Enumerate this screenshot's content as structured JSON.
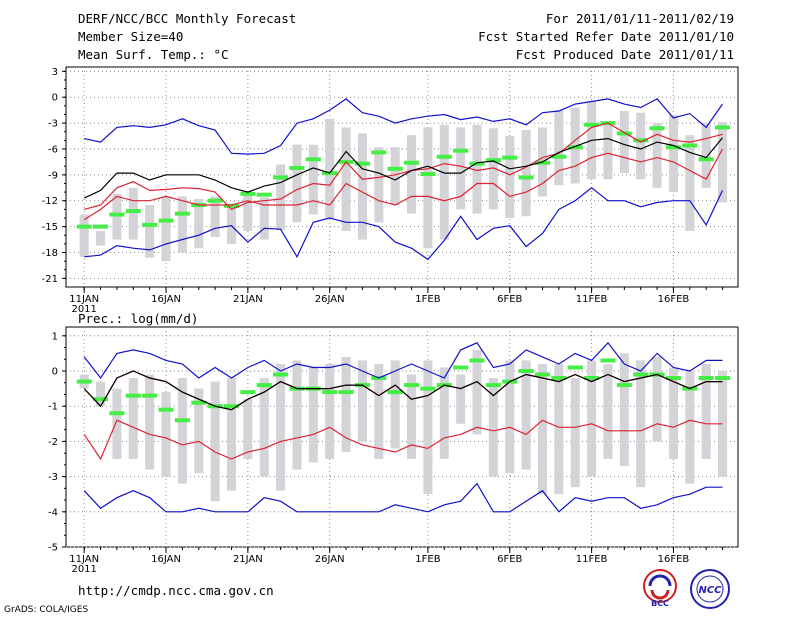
{
  "header": {
    "title": "DERF/NCC/BCC Monthly Forecast",
    "member_size": "Member Size=40",
    "variable": "Mean Surf. Temp.: °C",
    "period": "For 2011/01/11-2011/02/19",
    "refer_date": "Fcst Started Refer Date 2011/01/10",
    "produced_date": "Fcst Produced Date 2011/01/11"
  },
  "footer": {
    "url": "http://cmdp.ncc.cma.gov.cn",
    "grads": "GrADS: COLA/IGES",
    "logo_bcc": "BCC",
    "logo_ncc": "NCC"
  },
  "colors": {
    "box": "#d3d3d8",
    "median": "#44ee44",
    "mean": "#000000",
    "spread": "#dd2233",
    "extreme": "#1111cc",
    "grid": "#888888"
  },
  "chart_data": [
    {
      "id": "temp",
      "type": "box",
      "title": "Mean Surf. Temp.: °C",
      "ylim": [
        -22,
        3.5
      ],
      "yticks": [
        3,
        0,
        -3,
        -6,
        -9,
        -12,
        -15,
        -18,
        -21
      ],
      "xticks": [
        {
          "day": 1,
          "label": "11JAN",
          "sub": "2011"
        },
        {
          "day": 6,
          "label": "16JAN"
        },
        {
          "day": 11,
          "label": "21JAN"
        },
        {
          "day": 16,
          "label": "26JAN"
        },
        {
          "day": 22,
          "label": "1FEB"
        },
        {
          "day": 27,
          "label": "6FEB"
        },
        {
          "day": 32,
          "label": "11FEB"
        },
        {
          "day": 37,
          "label": "16FEB"
        }
      ],
      "days": 40,
      "max": [
        -4.8,
        -5.2,
        -3.5,
        -3.3,
        -3.5,
        -3.2,
        -2.5,
        -3.3,
        -3.8,
        -6.5,
        -6.6,
        -6.5,
        -5.6,
        -3.0,
        -2.5,
        -1.5,
        -0.2,
        -1.8,
        -2.2,
        -3.0,
        -2.5,
        -2.2,
        -2.0,
        -2.6,
        -2.3,
        -2.8,
        -2.5,
        -3.2,
        -1.8,
        -1.6,
        -0.8,
        -0.5,
        -0.2,
        -0.8,
        -1.2,
        -0.2,
        -2.4,
        -1.9,
        -3.5,
        -0.8
      ],
      "p75": [
        -13.0,
        -12.5,
        -10.5,
        -9.8,
        -10.8,
        -10.7,
        -10.5,
        -10.6,
        -11.0,
        -13.0,
        -12.2,
        -12.0,
        -11.8,
        -10.7,
        -10.0,
        -10.2,
        -7.5,
        -9.5,
        -9.3,
        -9.0,
        -8.5,
        -8.3,
        -7.7,
        -8.0,
        -8.5,
        -8.2,
        -9.0,
        -8.1,
        -7.0,
        -6.5,
        -5.0,
        -3.5,
        -3.0,
        -4.1,
        -5.2,
        -4.3,
        -5.0,
        -5.2,
        -4.8,
        -4.3
      ],
      "box_hi": [
        -13.6,
        -15.5,
        -11.2,
        -10.5,
        -12.5,
        -11.5,
        -11.5,
        -11.8,
        -11.5,
        -12.8,
        -11.2,
        -11.6,
        -7.8,
        -5.5,
        -5.5,
        -2.5,
        -3.5,
        -4.2,
        -5.8,
        -5.8,
        -4.4,
        -3.5,
        -3.2,
        -3.5,
        -3.2,
        -3.6,
        -4.5,
        -3.8,
        -3.5,
        -1.5,
        -1.2,
        -0.5,
        -3.2,
        -1.6,
        -1.8,
        -3.0,
        -2.1,
        -4.4,
        -3.0,
        -2.9
      ],
      "box_lo": [
        -18.5,
        -17.2,
        -16.5,
        -16.5,
        -18.6,
        -19.0,
        -18.0,
        -17.5,
        -16.2,
        -17.0,
        -15.5,
        -16.5,
        -15.4,
        -14.5,
        -13.6,
        -14.0,
        -15.5,
        -16.5,
        -14.5,
        -12.5,
        -13.5,
        -17.5,
        -16.5,
        -13.0,
        -13.5,
        -13.0,
        -14.0,
        -13.8,
        -11.5,
        -10.2,
        -10.0,
        -9.5,
        -9.5,
        -8.8,
        -9.5,
        -10.5,
        -11.0,
        -15.5,
        -10.5,
        -12.2
      ],
      "median": [
        -15.0,
        -15.0,
        -13.6,
        -13.2,
        -14.8,
        -14.3,
        -13.5,
        -12.5,
        -12.0,
        -12.6,
        -11.2,
        -11.3,
        -9.3,
        -8.2,
        -7.2,
        -8.8,
        -7.5,
        -7.7,
        -6.4,
        -8.3,
        -7.6,
        -8.9,
        -6.9,
        -6.2,
        -7.7,
        -7.3,
        -7.0,
        -9.3,
        -7.6,
        -6.9,
        -5.8,
        -3.2,
        -3.0,
        -4.2,
        -5.0,
        -3.6,
        -5.8,
        -5.6,
        -7.2,
        -3.5
      ],
      "mean": [
        -11.7,
        -10.8,
        -8.8,
        -8.8,
        -9.6,
        -9.0,
        -9.0,
        -9.0,
        -9.6,
        -10.5,
        -11.0,
        -10.3,
        -9.9,
        -9.0,
        -8.2,
        -8.8,
        -6.3,
        -8.3,
        -8.8,
        -9.6,
        -8.5,
        -8.0,
        -8.8,
        -8.8,
        -7.6,
        -7.4,
        -8.3,
        -8.0,
        -7.5,
        -6.4,
        -5.7,
        -5.0,
        -4.8,
        -5.5,
        -6.0,
        -5.2,
        -5.6,
        -6.4,
        -7.0,
        -4.7
      ],
      "p25": [
        -14.2,
        -13.0,
        -11.5,
        -12.0,
        -12.0,
        -11.5,
        -12.0,
        -12.5,
        -12.5,
        -12.5,
        -12.0,
        -12.5,
        -12.5,
        -12.5,
        -12.0,
        -12.5,
        -10.0,
        -11.0,
        -12.0,
        -12.5,
        -11.5,
        -11.5,
        -12.0,
        -11.5,
        -10.0,
        -10.0,
        -11.5,
        -11.0,
        -10.0,
        -8.5,
        -8.0,
        -7.0,
        -6.5,
        -7.0,
        -7.5,
        -7.0,
        -7.5,
        -8.5,
        -9.5,
        -6.0
      ],
      "min": [
        -18.5,
        -18.3,
        -17.2,
        -17.5,
        -17.7,
        -17.0,
        -16.5,
        -16.0,
        -15.2,
        -14.9,
        -16.8,
        -15.2,
        -15.3,
        -18.5,
        -14.5,
        -14.0,
        -14.5,
        -14.5,
        -15.0,
        -16.8,
        -17.5,
        -18.8,
        -16.6,
        -13.8,
        -16.5,
        -15.2,
        -14.9,
        -17.3,
        -15.8,
        -13.0,
        -12.0,
        -10.5,
        -12.0,
        -12.0,
        -12.7,
        -12.2,
        -12.0,
        -12.0,
        -14.8,
        -10.8
      ],
      "extra_mean": [
        -5.8,
        -6.2
      ]
    },
    {
      "id": "prec",
      "type": "box",
      "title": "Prec.: log(mm/d)",
      "ylim": [
        -5,
        1.25
      ],
      "yticks": [
        1,
        0,
        -1,
        -2,
        -3,
        -4,
        -5
      ],
      "xticks": [
        {
          "day": 1,
          "label": "11JAN",
          "sub": "2011"
        },
        {
          "day": 6,
          "label": "16JAN"
        },
        {
          "day": 11,
          "label": "21JAN"
        },
        {
          "day": 16,
          "label": "26JAN"
        },
        {
          "day": 22,
          "label": "1FEB"
        },
        {
          "day": 27,
          "label": "6FEB"
        },
        {
          "day": 32,
          "label": "11FEB"
        },
        {
          "day": 37,
          "label": "16FEB"
        }
      ],
      "days": 40,
      "max": [
        0.4,
        -0.2,
        0.5,
        0.6,
        0.5,
        0.3,
        0.2,
        -0.2,
        0.1,
        -0.2,
        0.1,
        0.3,
        0.0,
        0.2,
        0.1,
        0.1,
        0.2,
        0.0,
        -0.2,
        0.0,
        0.2,
        0.0,
        -0.2,
        0.6,
        0.8,
        0.1,
        0.2,
        0.6,
        0.4,
        0.2,
        0.5,
        0.3,
        0.8,
        0.2,
        0.0,
        0.5,
        0.1,
        0.0,
        0.3,
        0.3
      ],
      "box_hi": [
        -0.1,
        -0.3,
        -0.5,
        -0.2,
        -0.1,
        -0.6,
        -0.2,
        -0.5,
        -0.3,
        -0.2,
        -0.8,
        -0.2,
        0.2,
        0.3,
        0.1,
        0.2,
        0.4,
        0.3,
        0.2,
        0.3,
        -0.1,
        0.3,
        0.1,
        -0.1,
        0.6,
        -0.2,
        0.3,
        0.3,
        0.2,
        0.2,
        -0.2,
        0.3,
        0.2,
        0.5,
        0.3,
        0.4,
        0.1,
        0.0,
        0.2,
        0.0
      ],
      "box_lo": [
        -0.5,
        -1.0,
        -2.5,
        -2.5,
        -2.8,
        -3.0,
        -3.2,
        -2.9,
        -3.7,
        -3.4,
        -2.5,
        -3.0,
        -3.4,
        -2.8,
        -2.6,
        -2.5,
        -2.3,
        -2.0,
        -2.5,
        -2.2,
        -2.5,
        -3.5,
        -2.5,
        -1.5,
        -1.8,
        -3.0,
        -2.9,
        -2.8,
        -3.5,
        -3.5,
        -3.3,
        -3.0,
        -2.5,
        -2.7,
        -3.3,
        -2.0,
        -2.5,
        -3.2,
        -2.5,
        -3.0
      ],
      "median": [
        -0.3,
        -0.8,
        -1.2,
        -0.7,
        -0.7,
        -1.1,
        -1.4,
        -0.9,
        -1.0,
        -1.0,
        -0.6,
        -0.4,
        -0.1,
        -0.5,
        -0.5,
        -0.6,
        -0.6,
        -0.4,
        -0.2,
        -0.6,
        -0.4,
        -0.5,
        -0.4,
        0.1,
        0.3,
        -0.4,
        -0.3,
        0.0,
        -0.1,
        -0.2,
        0.1,
        -0.2,
        0.3,
        -0.4,
        -0.1,
        -0.1,
        -0.2,
        -0.5,
        -0.2,
        -0.2
      ],
      "mean": [
        -0.5,
        -1.0,
        -0.2,
        0.0,
        -0.2,
        -0.3,
        -0.6,
        -0.8,
        -1.0,
        -1.1,
        -0.8,
        -0.6,
        -0.3,
        -0.5,
        -0.5,
        -0.5,
        -0.4,
        -0.4,
        -0.7,
        -0.4,
        -0.8,
        -0.7,
        -0.4,
        -0.5,
        -0.3,
        -0.7,
        -0.3,
        -0.1,
        -0.2,
        -0.3,
        -0.1,
        -0.3,
        -0.1,
        -0.3,
        -0.2,
        -0.1,
        -0.3,
        -0.5,
        -0.3,
        -0.3
      ],
      "p75": [
        -0.5,
        -1.0,
        -0.2,
        0.0,
        -0.2,
        -0.3,
        -0.6,
        -0.8,
        -1.0,
        -1.1,
        -0.8,
        -0.6,
        -0.3,
        -0.5,
        -0.5,
        -0.5,
        -0.4,
        -0.4,
        -0.7,
        -0.4,
        -0.8,
        -0.7,
        -0.4,
        -0.5,
        -0.3,
        -0.7,
        -0.3,
        -0.1,
        -0.2,
        -0.3,
        -0.1,
        -0.3,
        -0.1,
        -0.3,
        -0.2,
        -0.1,
        -0.3,
        -0.5,
        -0.3,
        -0.3
      ],
      "p25": [
        -1.8,
        -2.5,
        -1.4,
        -1.6,
        -1.8,
        -1.9,
        -2.1,
        -2.0,
        -2.3,
        -2.5,
        -2.3,
        -2.2,
        -2.0,
        -1.9,
        -1.8,
        -1.6,
        -1.9,
        -2.1,
        -2.2,
        -2.3,
        -2.1,
        -2.2,
        -1.9,
        -1.8,
        -1.6,
        -1.7,
        -1.6,
        -1.8,
        -1.4,
        -1.6,
        -1.6,
        -1.5,
        -1.7,
        -1.7,
        -1.7,
        -1.5,
        -1.6,
        -1.4,
        -1.5,
        -1.5
      ],
      "min": [
        -3.4,
        -3.9,
        -3.6,
        -3.4,
        -3.6,
        -4.0,
        -4.0,
        -3.9,
        -4.0,
        -4.0,
        -4.0,
        -3.6,
        -3.7,
        -4.0,
        -4.0,
        -4.0,
        -4.0,
        -4.0,
        -4.0,
        -3.8,
        -3.9,
        -4.0,
        -3.8,
        -3.7,
        -3.2,
        -4.0,
        -4.0,
        -3.7,
        -3.4,
        -4.0,
        -3.6,
        -3.7,
        -3.6,
        -3.6,
        -3.9,
        -3.8,
        -3.6,
        -3.5,
        -3.3,
        -3.3
      ]
    }
  ]
}
